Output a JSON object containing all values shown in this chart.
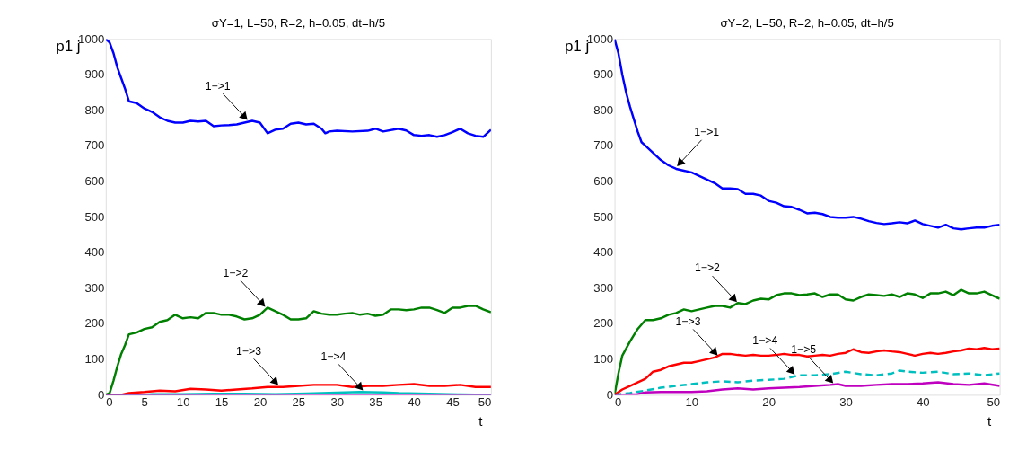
{
  "chart_data": [
    {
      "type": "line",
      "title": "σY=1, L=50, R=2, h=0.05, dt=h/5",
      "xlabel": "t",
      "ylabel": "p1 j",
      "xlim": [
        0,
        50
      ],
      "ylim": [
        0,
        1000
      ],
      "xticks": [
        0,
        5,
        10,
        15,
        20,
        25,
        30,
        35,
        40,
        45,
        50
      ],
      "yticks": [
        0,
        100,
        200,
        300,
        400,
        500,
        600,
        700,
        800,
        900,
        1000
      ],
      "grid": false,
      "marker": "none",
      "annotations": [
        {
          "text": "1−>1",
          "x": 18.5,
          "y": 770
        },
        {
          "text": "1−>2",
          "x": 20.8,
          "y": 245
        },
        {
          "text": "1−>3",
          "x": 22.5,
          "y": 25
        },
        {
          "text": "1−>4",
          "x": 33.5,
          "y": 10
        }
      ],
      "series": [
        {
          "color": "#0000ff",
          "line_style": "solid",
          "x": [
            0,
            0.5,
            1,
            1.5,
            2,
            2.5,
            3,
            4,
            5,
            6,
            7,
            8,
            9,
            10,
            11,
            12,
            13,
            14,
            15,
            16,
            17,
            18,
            19,
            20,
            21,
            22,
            23,
            24,
            25,
            26,
            27,
            28,
            28.5,
            29,
            30,
            32,
            34,
            35,
            36,
            38,
            39,
            40,
            41,
            42,
            43,
            44,
            45,
            46,
            47,
            48,
            49,
            49.5,
            50
          ],
          "values": [
            1000,
            990,
            960,
            920,
            890,
            860,
            825,
            820,
            805,
            795,
            780,
            770,
            765,
            765,
            770,
            768,
            770,
            755,
            757,
            758,
            760,
            765,
            770,
            765,
            735,
            745,
            748,
            762,
            765,
            760,
            762,
            748,
            735,
            740,
            742,
            740,
            742,
            748,
            740,
            748,
            743,
            730,
            728,
            730,
            725,
            730,
            738,
            748,
            735,
            728,
            725,
            735,
            745
          ]
        },
        {
          "color": "#008000",
          "line_style": "solid",
          "x": [
            0,
            0.5,
            1,
            1.5,
            2,
            2.5,
            3,
            4,
            5,
            6,
            7,
            8,
            9,
            10,
            11,
            12,
            13,
            14,
            15,
            16,
            17,
            18,
            19,
            20,
            21,
            22,
            23,
            24,
            25,
            26,
            27,
            28,
            29,
            30,
            31,
            32,
            33,
            34,
            35,
            36,
            37,
            38,
            39,
            40,
            41,
            42,
            43,
            44,
            45,
            46,
            47,
            48,
            49,
            50
          ],
          "values": [
            0,
            5,
            40,
            80,
            115,
            140,
            170,
            175,
            185,
            190,
            205,
            210,
            225,
            215,
            218,
            215,
            230,
            230,
            225,
            225,
            220,
            212,
            215,
            225,
            245,
            235,
            225,
            212,
            212,
            215,
            235,
            228,
            225,
            225,
            228,
            230,
            225,
            228,
            222,
            225,
            240,
            240,
            238,
            240,
            245,
            245,
            238,
            230,
            245,
            245,
            250,
            250,
            240,
            232
          ]
        },
        {
          "color": "#ff0000",
          "line_style": "solid",
          "x": [
            0,
            2,
            3,
            5,
            7,
            9,
            11,
            13,
            15,
            17,
            19,
            21,
            23,
            25,
            27,
            29,
            30,
            32,
            34,
            36,
            38,
            40,
            42,
            44,
            46,
            48,
            50
          ],
          "values": [
            0,
            0,
            5,
            8,
            12,
            10,
            17,
            15,
            12,
            15,
            18,
            22,
            22,
            25,
            28,
            28,
            28,
            22,
            25,
            25,
            28,
            30,
            25,
            25,
            28,
            22,
            22
          ]
        },
        {
          "color": "#00bfbf",
          "line_style": "solid",
          "x": [
            0,
            5,
            6,
            10,
            14,
            18,
            22,
            26,
            30,
            33,
            36,
            38,
            42,
            46,
            50
          ],
          "values": [
            0,
            0,
            2,
            2,
            3,
            3,
            2,
            4,
            6,
            8,
            7,
            5,
            3,
            1,
            0
          ]
        },
        {
          "color": "#bf00bf",
          "line_style": "solid",
          "x": [
            0,
            50
          ],
          "values": [
            0,
            0
          ]
        }
      ]
    },
    {
      "type": "line",
      "title": "σY=2, L=50, R=2, h=0.05, dt=h/5",
      "xlabel": "t",
      "ylabel": "p1 j",
      "xlim": [
        0,
        50
      ],
      "ylim": [
        0,
        1000
      ],
      "xticks": [
        0,
        10,
        20,
        30,
        40,
        50
      ],
      "yticks": [
        0,
        100,
        200,
        300,
        400,
        500,
        600,
        700,
        800,
        900,
        1000
      ],
      "grid": false,
      "marker": "none",
      "annotations": [
        {
          "text": "1−>1",
          "x": 8,
          "y": 640
        },
        {
          "text": "1−>2",
          "x": 16,
          "y": 258
        },
        {
          "text": "1−>3",
          "x": 13.5,
          "y": 108
        },
        {
          "text": "1−>4",
          "x": 23.5,
          "y": 55
        },
        {
          "text": "1−>5",
          "x": 28.5,
          "y": 30
        }
      ],
      "series": [
        {
          "color": "#0000ff",
          "line_style": "solid",
          "x": [
            0,
            0.5,
            1,
            1.5,
            2,
            2.5,
            3,
            3.5,
            4,
            5,
            6,
            7,
            8,
            9,
            10,
            11,
            12,
            13,
            14,
            15,
            16,
            17,
            18,
            19,
            20,
            21,
            22,
            23,
            24,
            25,
            26,
            27,
            28,
            29,
            30,
            31,
            32,
            33,
            34,
            35,
            36,
            37,
            38,
            39,
            40,
            41,
            42,
            43,
            44,
            45,
            46,
            47,
            48,
            49,
            50
          ],
          "values": [
            1000,
            960,
            900,
            850,
            810,
            775,
            740,
            710,
            700,
            680,
            660,
            645,
            635,
            630,
            625,
            615,
            605,
            595,
            580,
            580,
            578,
            565,
            565,
            560,
            545,
            540,
            530,
            528,
            520,
            510,
            512,
            508,
            500,
            498,
            498,
            500,
            495,
            488,
            483,
            480,
            482,
            485,
            482,
            490,
            480,
            475,
            470,
            478,
            468,
            465,
            468,
            470,
            470,
            475,
            478
          ]
        },
        {
          "color": "#008000",
          "line_style": "solid",
          "x": [
            0,
            0.5,
            1,
            2,
            3,
            4,
            5,
            6,
            7,
            8,
            9,
            10,
            11,
            12,
            13,
            14,
            15,
            16,
            17,
            18,
            19,
            20,
            21,
            22,
            23,
            24,
            25,
            26,
            27,
            28,
            29,
            30,
            31,
            32,
            33,
            34,
            35,
            36,
            37,
            38,
            39,
            40,
            41,
            42,
            43,
            44,
            45,
            46,
            47,
            48,
            49,
            50
          ],
          "values": [
            0,
            60,
            110,
            150,
            185,
            210,
            210,
            215,
            225,
            230,
            240,
            235,
            240,
            245,
            250,
            250,
            245,
            258,
            255,
            265,
            270,
            268,
            280,
            285,
            285,
            280,
            282,
            285,
            275,
            282,
            282,
            268,
            265,
            275,
            282,
            280,
            278,
            282,
            275,
            285,
            282,
            272,
            285,
            285,
            290,
            280,
            295,
            285,
            285,
            290,
            280,
            270
          ]
        },
        {
          "color": "#ff0000",
          "line_style": "solid",
          "x": [
            0,
            1,
            2,
            3,
            4,
            5,
            6,
            7,
            8,
            9,
            10,
            11,
            12,
            13,
            14,
            15,
            16,
            17,
            18,
            19,
            20,
            21,
            22,
            23,
            24,
            25,
            26,
            27,
            28,
            29,
            30,
            31,
            32,
            33,
            34,
            35,
            36,
            37,
            38,
            39,
            40,
            41,
            42,
            43,
            44,
            45,
            46,
            47,
            48,
            49,
            50
          ],
          "values": [
            0,
            15,
            25,
            35,
            45,
            65,
            70,
            80,
            85,
            90,
            90,
            95,
            100,
            105,
            115,
            115,
            112,
            110,
            112,
            110,
            110,
            112,
            115,
            112,
            112,
            108,
            110,
            112,
            110,
            115,
            118,
            128,
            120,
            118,
            122,
            125,
            122,
            120,
            115,
            110,
            115,
            118,
            115,
            118,
            122,
            125,
            130,
            128,
            132,
            128,
            130
          ]
        },
        {
          "color": "#00bfbf",
          "line_style": "dashed",
          "x": [
            0,
            2,
            4,
            6,
            8,
            10,
            12,
            14,
            16,
            18,
            20,
            22,
            24,
            26,
            28,
            30,
            32,
            34,
            36,
            37,
            38,
            40,
            42,
            44,
            46,
            48,
            50
          ],
          "values": [
            0,
            5,
            12,
            20,
            25,
            30,
            35,
            38,
            35,
            40,
            42,
            45,
            55,
            55,
            58,
            65,
            58,
            55,
            60,
            68,
            65,
            62,
            65,
            58,
            60,
            55,
            60
          ]
        },
        {
          "color": "#bf00bf",
          "line_style": "solid",
          "x": [
            0,
            3,
            4,
            6,
            8,
            10,
            12,
            14,
            16,
            18,
            20,
            22,
            24,
            26,
            28,
            29,
            30,
            32,
            34,
            36,
            38,
            40,
            42,
            44,
            46,
            48,
            50
          ],
          "values": [
            0,
            2,
            7,
            8,
            8,
            8,
            10,
            15,
            18,
            15,
            18,
            20,
            22,
            25,
            28,
            30,
            25,
            25,
            28,
            30,
            30,
            32,
            35,
            30,
            28,
            32,
            25
          ]
        }
      ]
    }
  ]
}
